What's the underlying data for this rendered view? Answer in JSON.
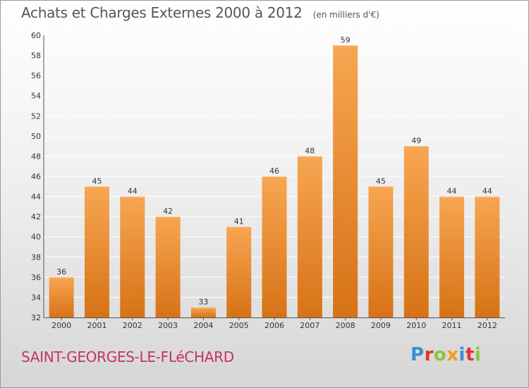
{
  "title": "Achats et Charges Externes 2000 à 2012",
  "unit": "(en milliers d'€)",
  "commune": "SAINT-GEORGES-LE-FLéCHARD",
  "logo": {
    "letters": [
      "P",
      "r",
      "o",
      "x",
      "i",
      "t",
      "i"
    ],
    "colors": [
      "#3a8fd0",
      "#e8322e",
      "#8cc63f",
      "#f39c1f",
      "#3a8fd0",
      "#e8322e",
      "#8cc63f"
    ]
  },
  "colors": {
    "bar_top": "#f7a652",
    "bar_bottom": "#d77216",
    "grid": "#ffffff",
    "axis": "#555555",
    "title": "#555555",
    "commune": "#c8306a"
  },
  "chart_data": {
    "type": "bar",
    "title": "Achats et Charges Externes 2000 à 2012",
    "subtitle": "(en milliers d'€)",
    "categories": [
      "2000",
      "2001",
      "2002",
      "2003",
      "2004",
      "2005",
      "2006",
      "2007",
      "2008",
      "2009",
      "2010",
      "2011",
      "2012"
    ],
    "values": [
      36,
      45,
      44,
      42,
      33,
      41,
      46,
      48,
      59,
      45,
      49,
      44,
      44
    ],
    "xlabel": "",
    "ylabel": "",
    "ylim": [
      32,
      60
    ],
    "yticks": [
      32,
      34,
      36,
      38,
      40,
      42,
      44,
      46,
      48,
      50,
      52,
      54,
      56,
      58,
      60
    ],
    "grid": true,
    "data_labels": true
  }
}
